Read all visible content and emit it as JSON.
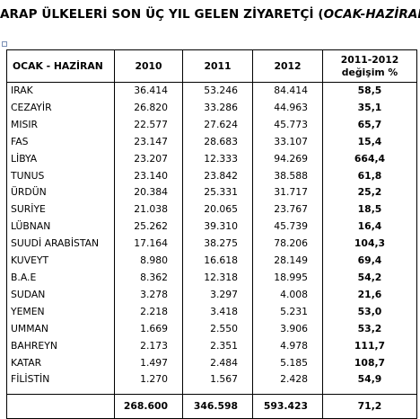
{
  "title": {
    "main": "ARAP ÜLKELERİ SON ÜÇ YIL GELEN ZİYARETÇİ (",
    "subtitle": "OCAK-HAZİRAN",
    "close": ")"
  },
  "table": {
    "headers": [
      "OCAK - HAZİRAN",
      "2010",
      "2011",
      "2012",
      "2011-2012",
      "değişim %"
    ],
    "rows": [
      [
        "IRAK",
        "36.414",
        "53.246",
        "84.414",
        "58,5"
      ],
      [
        "CEZAYİR",
        "26.820",
        "33.286",
        "44.963",
        "35,1"
      ],
      [
        "MISIR",
        "22.577",
        "27.624",
        "45.773",
        "65,7"
      ],
      [
        "FAS",
        "23.147",
        "28.683",
        "33.107",
        "15,4"
      ],
      [
        "LİBYA",
        "23.207",
        "12.333",
        "94.269",
        "664,4"
      ],
      [
        "TUNUS",
        "23.140",
        "23.842",
        "38.588",
        "61,8"
      ],
      [
        "ÜRDÜN",
        "20.384",
        "25.331",
        "31.717",
        "25,2"
      ],
      [
        "SURİYE",
        "21.038",
        "20.065",
        "23.767",
        "18,5"
      ],
      [
        "LÜBNAN",
        "25.262",
        "39.310",
        "45.739",
        "16,4"
      ],
      [
        "SUUDİ ARABİSTAN",
        "17.164",
        "38.275",
        "78.206",
        "104,3"
      ],
      [
        "KUVEYT",
        "8.980",
        "16.618",
        "28.149",
        "69,4"
      ],
      [
        "B.A.E",
        "8.362",
        "12.318",
        "18.995",
        "54,2"
      ],
      [
        "SUDAN",
        "3.278",
        "3.297",
        "4.008",
        "21,6"
      ],
      [
        "YEMEN",
        "2.218",
        "3.418",
        "5.231",
        "53,0"
      ],
      [
        "UMMAN",
        "1.669",
        "2.550",
        "3.906",
        "53,2"
      ],
      [
        "BAHREYN",
        "2.173",
        "2.351",
        "4.978",
        "111,7"
      ],
      [
        "KATAR",
        "1.497",
        "2.484",
        "5.185",
        "108,7"
      ],
      [
        "FİLİSTİN",
        "1.270",
        "1.567",
        "2.428",
        "54,9"
      ]
    ],
    "total": [
      "",
      "268.600",
      "346.598",
      "593.423",
      "71,2"
    ]
  }
}
